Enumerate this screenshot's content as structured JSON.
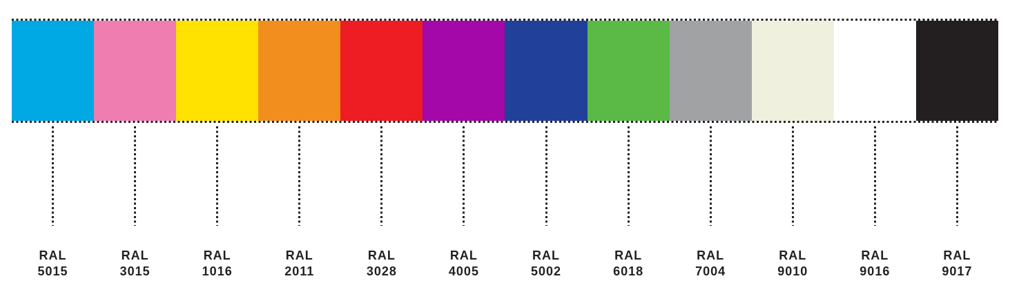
{
  "style": {
    "ink": "#231F20",
    "background": "#FFFFFF"
  },
  "palette": {
    "swatches": [
      {
        "ral": "RAL",
        "code": "5015",
        "color": "#00A9E4"
      },
      {
        "ral": "RAL",
        "code": "3015",
        "color": "#F07DB0"
      },
      {
        "ral": "RAL",
        "code": "1016",
        "color": "#FFE200"
      },
      {
        "ral": "RAL",
        "code": "2011",
        "color": "#F28E1E"
      },
      {
        "ral": "RAL",
        "code": "3028",
        "color": "#EE1C23"
      },
      {
        "ral": "RAL",
        "code": "4005",
        "color": "#A408A9"
      },
      {
        "ral": "RAL",
        "code": "5002",
        "color": "#21409A"
      },
      {
        "ral": "RAL",
        "code": "6018",
        "color": "#5BBA46"
      },
      {
        "ral": "RAL",
        "code": "7004",
        "color": "#A1A2A4"
      },
      {
        "ral": "RAL",
        "code": "9010",
        "color": "#EFF0DD"
      },
      {
        "ral": "RAL",
        "code": "9016",
        "color": "#FFFFFF"
      },
      {
        "ral": "RAL",
        "code": "9017",
        "color": "#231F20"
      }
    ]
  },
  "chart_data": {
    "type": "table",
    "categories": [
      "RAL 5015",
      "RAL 3015",
      "RAL 1016",
      "RAL 2011",
      "RAL 3028",
      "RAL 4005",
      "RAL 5002",
      "RAL 6018",
      "RAL 7004",
      "RAL 9010",
      "RAL 9016",
      "RAL 9017"
    ],
    "colors": [
      "#00A9E4",
      "#F07DB0",
      "#FFE200",
      "#F28E1E",
      "#EE1C23",
      "#A408A9",
      "#21409A",
      "#5BBA46",
      "#A1A2A4",
      "#EFF0DD",
      "#FFFFFF",
      "#231F20"
    ],
    "layout_hint": "horizontal strip of 12 equal color swatches, dotted top/bottom border, dotted leader line from each swatch center down to a two-line label"
  }
}
